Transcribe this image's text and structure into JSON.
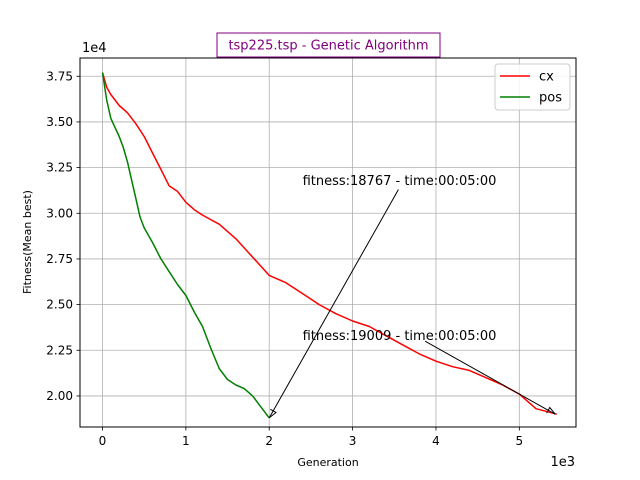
{
  "chart_data": {
    "type": "line",
    "title": "tsp225.tsp - Genetic Algorithm",
    "xlabel": "Generation",
    "ylabel": "Fitness(Mean best)",
    "x_offset_label": "1e3",
    "y_offset_label": "1e4",
    "x_scale": 1000,
    "y_scale": 10000,
    "xlim": [
      -0.27,
      5.68
    ],
    "ylim": [
      1.83,
      3.85
    ],
    "xticks": [
      0,
      1,
      2,
      3,
      4,
      5
    ],
    "xtick_labels": [
      "0",
      "1",
      "2",
      "3",
      "4",
      "5"
    ],
    "yticks": [
      2.0,
      2.25,
      2.5,
      2.75,
      3.0,
      3.25,
      3.5,
      3.75
    ],
    "ytick_labels": [
      "2.00",
      "2.25",
      "2.50",
      "2.75",
      "3.00",
      "3.25",
      "3.50",
      "3.75"
    ],
    "grid": true,
    "legend_position": "upper-right",
    "series": [
      {
        "name": "cx",
        "color": "#ff0000",
        "points": [
          [
            0.0,
            3.77
          ],
          [
            0.05,
            3.69
          ],
          [
            0.1,
            3.65
          ],
          [
            0.2,
            3.59
          ],
          [
            0.3,
            3.55
          ],
          [
            0.4,
            3.49
          ],
          [
            0.5,
            3.42
          ],
          [
            0.6,
            3.33
          ],
          [
            0.7,
            3.24
          ],
          [
            0.8,
            3.15
          ],
          [
            0.9,
            3.12
          ],
          [
            1.0,
            3.06
          ],
          [
            1.1,
            3.02
          ],
          [
            1.2,
            2.99
          ],
          [
            1.4,
            2.94
          ],
          [
            1.6,
            2.86
          ],
          [
            1.8,
            2.76
          ],
          [
            2.0,
            2.66
          ],
          [
            2.2,
            2.62
          ],
          [
            2.4,
            2.56
          ],
          [
            2.6,
            2.5
          ],
          [
            2.8,
            2.45
          ],
          [
            3.0,
            2.41
          ],
          [
            3.2,
            2.38
          ],
          [
            3.4,
            2.33
          ],
          [
            3.6,
            2.28
          ],
          [
            3.8,
            2.23
          ],
          [
            4.0,
            2.19
          ],
          [
            4.2,
            2.16
          ],
          [
            4.4,
            2.14
          ],
          [
            4.6,
            2.1
          ],
          [
            4.8,
            2.06
          ],
          [
            5.0,
            2.01
          ],
          [
            5.2,
            1.93
          ],
          [
            5.45,
            1.9
          ]
        ]
      },
      {
        "name": "pos",
        "color": "#008000",
        "points": [
          [
            0.0,
            3.77
          ],
          [
            0.05,
            3.62
          ],
          [
            0.1,
            3.52
          ],
          [
            0.15,
            3.47
          ],
          [
            0.2,
            3.42
          ],
          [
            0.25,
            3.36
          ],
          [
            0.3,
            3.28
          ],
          [
            0.35,
            3.18
          ],
          [
            0.4,
            3.08
          ],
          [
            0.45,
            2.98
          ],
          [
            0.5,
            2.92
          ],
          [
            0.6,
            2.84
          ],
          [
            0.7,
            2.75
          ],
          [
            0.8,
            2.68
          ],
          [
            0.9,
            2.61
          ],
          [
            1.0,
            2.55
          ],
          [
            1.1,
            2.46
          ],
          [
            1.2,
            2.38
          ],
          [
            1.3,
            2.26
          ],
          [
            1.4,
            2.15
          ],
          [
            1.5,
            2.09
          ],
          [
            1.6,
            2.06
          ],
          [
            1.7,
            2.04
          ],
          [
            1.8,
            2.0
          ],
          [
            1.9,
            1.94
          ],
          [
            2.0,
            1.88
          ]
        ]
      }
    ],
    "annotations": [
      {
        "text": "fitness:18767 - time:00:05:00",
        "xy": [
          2.0,
          1.88
        ],
        "xytext": [
          3.55,
          3.13
        ],
        "label_x": 2.4,
        "label_y": 3.18
      },
      {
        "text": "fitness:19009 - time:00:05:00",
        "xy": [
          5.43,
          1.9
        ],
        "xytext": [
          3.87,
          2.3
        ],
        "label_x": 2.4,
        "label_y": 2.33
      }
    ]
  }
}
